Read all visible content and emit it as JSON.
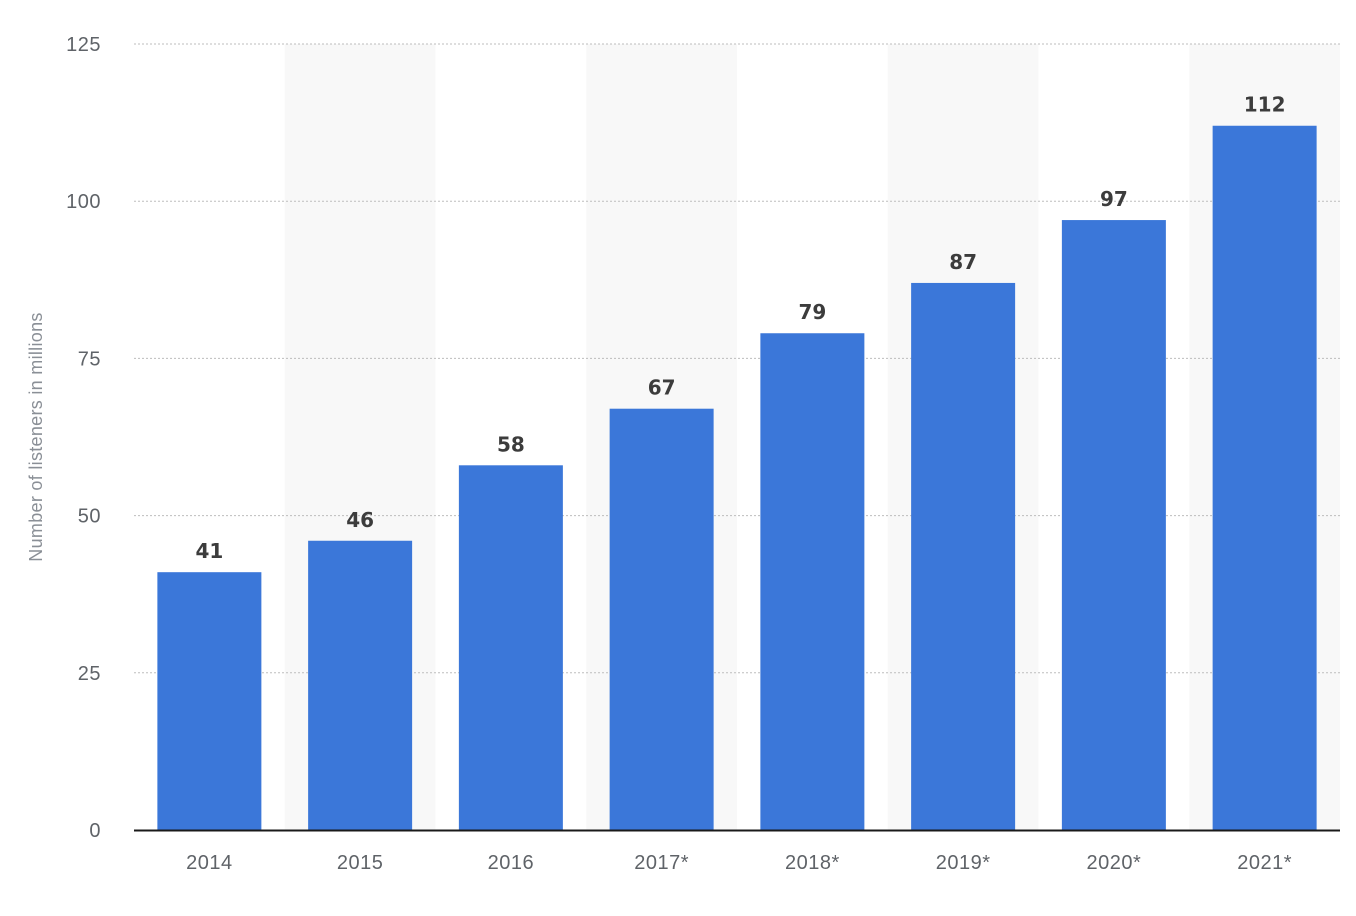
{
  "chart_data": {
    "type": "bar",
    "categories": [
      "2014",
      "2015",
      "2016",
      "2017*",
      "2018*",
      "2019*",
      "2020*",
      "2021*"
    ],
    "series": [
      {
        "values": [
          41,
          46,
          58,
          67,
          79,
          87,
          97,
          112
        ],
        "color": "#3b77d9"
      }
    ],
    "data_labels": [
      "41",
      "46",
      "58",
      "67",
      "79",
      "87",
      "97",
      "112"
    ],
    "ylabel": "Number of listeners in millions",
    "xlabel": "",
    "ylim": [
      0,
      125
    ],
    "yticks": [
      "0",
      "25",
      "50",
      "75",
      "100",
      "125"
    ],
    "grid": true,
    "legend": "none"
  }
}
